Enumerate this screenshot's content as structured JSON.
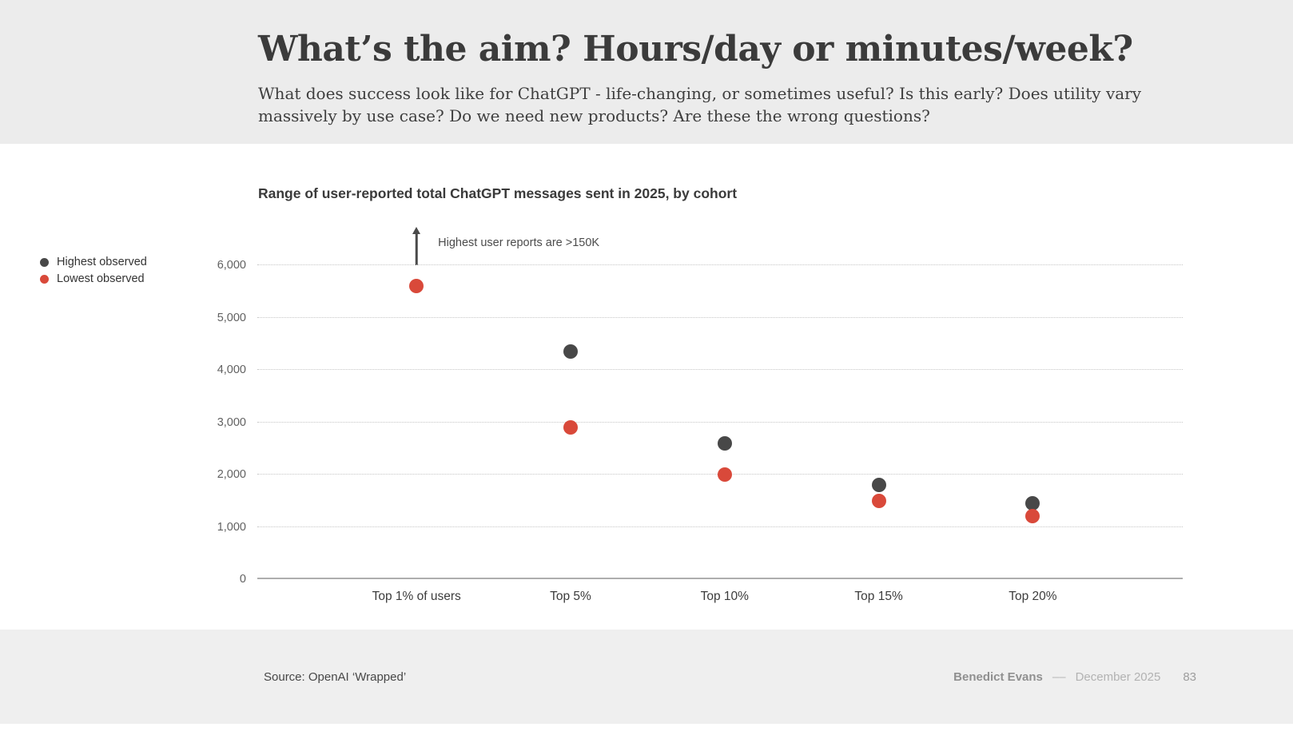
{
  "header": {
    "title": "What’s the aim? Hours/day or minutes/week?",
    "subtitle": "What does success look like for ChatGPT - life-changing, or sometimes useful? Is this early? Does utility vary massively by use case? Do we need new products? Are these the wrong questions?"
  },
  "chart_data": {
    "type": "scatter",
    "title": "Range of user-reported total ChatGPT messages sent in 2025, by cohort",
    "categories": [
      "Top 1% of users",
      "Top 5%",
      "Top 10%",
      "Top 15%",
      "Top 20%"
    ],
    "series": [
      {
        "name": "Highest observed",
        "color": "#484848",
        "values": [
          null,
          4350,
          2600,
          1800,
          1450
        ]
      },
      {
        "name": "Lowest observed",
        "color": "#d9493a",
        "values": [
          5600,
          2900,
          2000,
          1500,
          1200
        ]
      }
    ],
    "annotation": "Highest user reports are >150K",
    "annotation_note": "Highest observed value for Top 1% of users is above the chart scale, marked with an upward arrow",
    "ylim": [
      0,
      6000
    ],
    "yticks": [
      0,
      1000,
      2000,
      3000,
      4000,
      5000,
      6000
    ],
    "ytick_labels": [
      "0",
      "1,000",
      "2,000",
      "3,000",
      "4,000",
      "5,000",
      "6,000"
    ],
    "grid": "horizontal-dotted",
    "legend_position": "left"
  },
  "footer": {
    "source": "Source: OpenAI ‘Wrapped’",
    "author": "Benedict Evans",
    "separator": "––",
    "date": "December 2025",
    "page": "83"
  }
}
